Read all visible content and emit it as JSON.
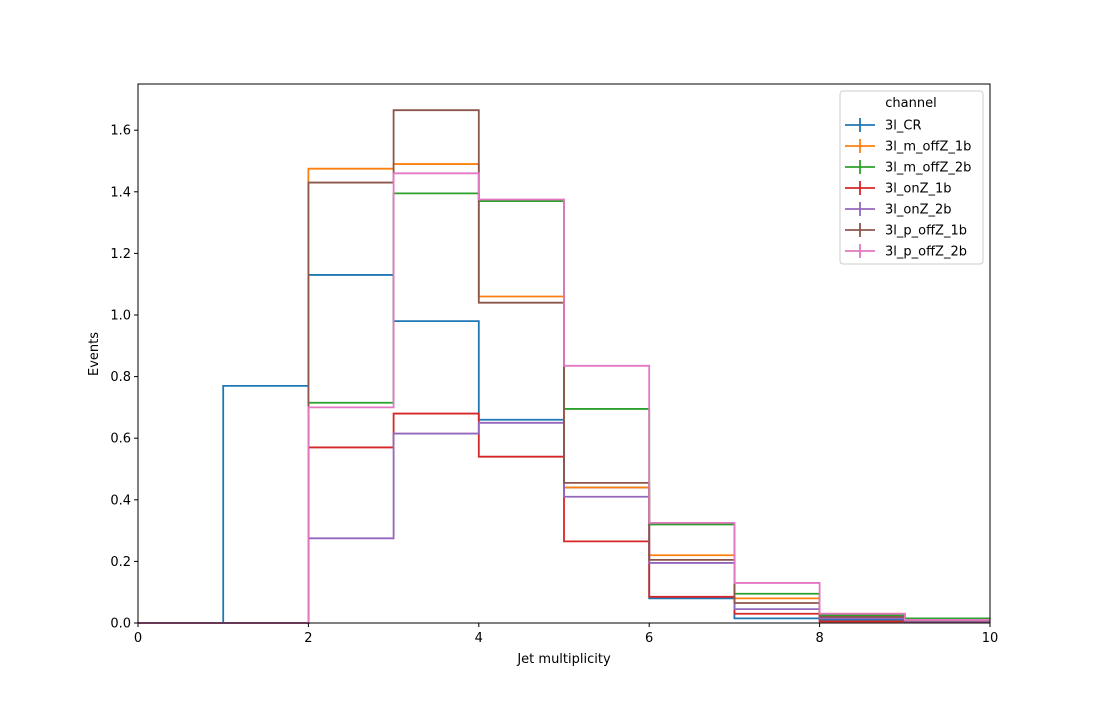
{
  "chart_data": {
    "type": "histogram",
    "xlabel": "Jet multiplicity",
    "ylabel": "Events",
    "xlim": [
      0,
      10
    ],
    "ylim": [
      0,
      1.75
    ],
    "x_ticks": [
      "0",
      "2",
      "4",
      "6",
      "8",
      "10"
    ],
    "y_ticks": [
      "0.0",
      "0.2",
      "0.4",
      "0.6",
      "0.8",
      "1.0",
      "1.2",
      "1.4",
      "1.6"
    ],
    "bin_edges": [
      0,
      1,
      2,
      3,
      4,
      5,
      6,
      7,
      8,
      9,
      10
    ],
    "grid": false,
    "legend": {
      "title": "channel",
      "placement": "top-right"
    },
    "series": [
      {
        "name": "3l_CR",
        "color": "#1f77b4",
        "values": [
          0,
          0.77,
          1.13,
          0.98,
          0.66,
          0.44,
          0.08,
          0.015,
          0.01,
          0.005
        ]
      },
      {
        "name": "3l_m_offZ_1b",
        "color": "#ff7f0e",
        "values": [
          0,
          0,
          1.475,
          1.49,
          1.06,
          0.44,
          0.22,
          0.08,
          0.03,
          0.01
        ]
      },
      {
        "name": "3l_m_offZ_2b",
        "color": "#2ca02c",
        "values": [
          0,
          0,
          0.715,
          1.395,
          1.37,
          0.695,
          0.32,
          0.095,
          0.025,
          0.015
        ]
      },
      {
        "name": "3l_onZ_1b",
        "color": "#d62728",
        "values": [
          0,
          0,
          0.57,
          0.68,
          0.54,
          0.265,
          0.085,
          0.03,
          0.005,
          0.002
        ]
      },
      {
        "name": "3l_onZ_2b",
        "color": "#9467bd",
        "values": [
          0,
          0,
          0.275,
          0.615,
          0.65,
          0.41,
          0.195,
          0.045,
          0.015,
          0.005
        ]
      },
      {
        "name": "3l_p_offZ_1b",
        "color": "#8c564b",
        "values": [
          0,
          0,
          1.43,
          1.665,
          1.04,
          0.455,
          0.205,
          0.065,
          0.02,
          0.008
        ]
      },
      {
        "name": "3l_p_offZ_2b",
        "color": "#e377c2",
        "values": [
          0,
          0,
          0.7,
          1.46,
          1.375,
          0.835,
          0.325,
          0.13,
          0.03,
          0.01
        ]
      }
    ]
  }
}
